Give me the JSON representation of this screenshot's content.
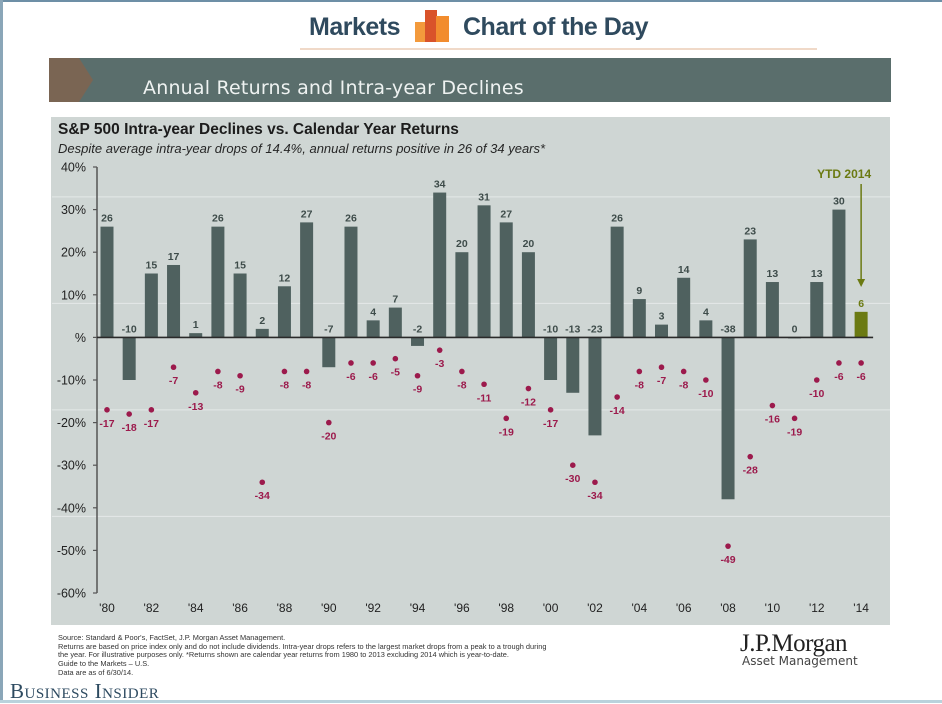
{
  "header": {
    "left_label": "Markets",
    "right_label": "Chart of the Day",
    "logo_icon": "bar-chart-logo-icon"
  },
  "banner": {
    "title": "Annual Returns and Intra-year Declines"
  },
  "chart_data": {
    "type": "bar",
    "title": "S&P 500 Intra-year Declines vs. Calendar Year Returns",
    "subtitle": "Despite average intra-year drops of 14.4%, annual returns positive in 26 of 34 years*",
    "xlabel": "",
    "ylabel": "",
    "ylim": [
      -60,
      40
    ],
    "y_ticks": [
      40,
      30,
      20,
      10,
      0,
      -10,
      -20,
      -30,
      -40,
      -50,
      -60
    ],
    "y_tick_labels": [
      "40%",
      "30%",
      "20%",
      "10%",
      "%",
      "-10%",
      "-20%",
      "-30%",
      "-40%",
      "-50%",
      "-60%"
    ],
    "years": [
      1980,
      1981,
      1982,
      1983,
      1984,
      1985,
      1986,
      1987,
      1988,
      1989,
      1990,
      1991,
      1992,
      1993,
      1994,
      1995,
      1996,
      1997,
      1998,
      1999,
      2000,
      2001,
      2002,
      2003,
      2004,
      2005,
      2006,
      2007,
      2008,
      2009,
      2010,
      2011,
      2012,
      2013,
      2014
    ],
    "x_tick_labels": [
      "'80",
      "'82",
      "'84",
      "'86",
      "'88",
      "'90",
      "'92",
      "'94",
      "'96",
      "'98",
      "'00",
      "'02",
      "'04",
      "'06",
      "'08",
      "'10",
      "'12",
      "'14"
    ],
    "series": [
      {
        "name": "Calendar year return",
        "kind": "bar",
        "color": "#4f615f",
        "values": [
          26,
          -10,
          15,
          17,
          1,
          26,
          15,
          2,
          12,
          27,
          -7,
          26,
          4,
          7,
          -2,
          34,
          20,
          31,
          27,
          20,
          -10,
          -13,
          -23,
          26,
          9,
          3,
          14,
          4,
          -38,
          23,
          13,
          0,
          13,
          30,
          6
        ]
      },
      {
        "name": "Intra-year decline",
        "kind": "point",
        "color": "#9c1a4c",
        "values": [
          -17,
          -18,
          -17,
          -7,
          -13,
          -8,
          -9,
          -34,
          -8,
          -8,
          -20,
          -6,
          -6,
          -5,
          -9,
          -3,
          -8,
          -11,
          -19,
          -12,
          -17,
          -30,
          -34,
          -14,
          -8,
          -7,
          -8,
          -10,
          -49,
          -28,
          -16,
          -19,
          -10,
          -6,
          -6
        ]
      }
    ],
    "highlight": {
      "label": "YTD 2014",
      "year": 2014,
      "color": "#6b7a12"
    },
    "grid": false,
    "legend": "none"
  },
  "footer": {
    "source": "Source: Standard & Poor's, FactSet, J.P. Morgan Asset Management.",
    "note_line1": "Returns are based on price index only and do not include dividends. Intra-year drops refers to the largest market drops from a peak to a trough during",
    "note_line2": "the year. For illustrative purposes only. *Returns shown are calendar year returns from 1980 to 2013 excluding 2014 which is year-to-date.",
    "guide": "Guide to the Markets – U.S.",
    "data_date": "Data are as of 6/30/14.",
    "brand": "J.P.Morgan",
    "brand_sub": "Asset Management",
    "publisher": "Business Insider"
  },
  "colors": {
    "header_text": "#2f4a5e",
    "banner_bg": "#5a6e6c",
    "panel_bg": "#cfd6d4",
    "bar": "#4f615f",
    "decline": "#9c1a4c",
    "ytd": "#6b7a12"
  }
}
